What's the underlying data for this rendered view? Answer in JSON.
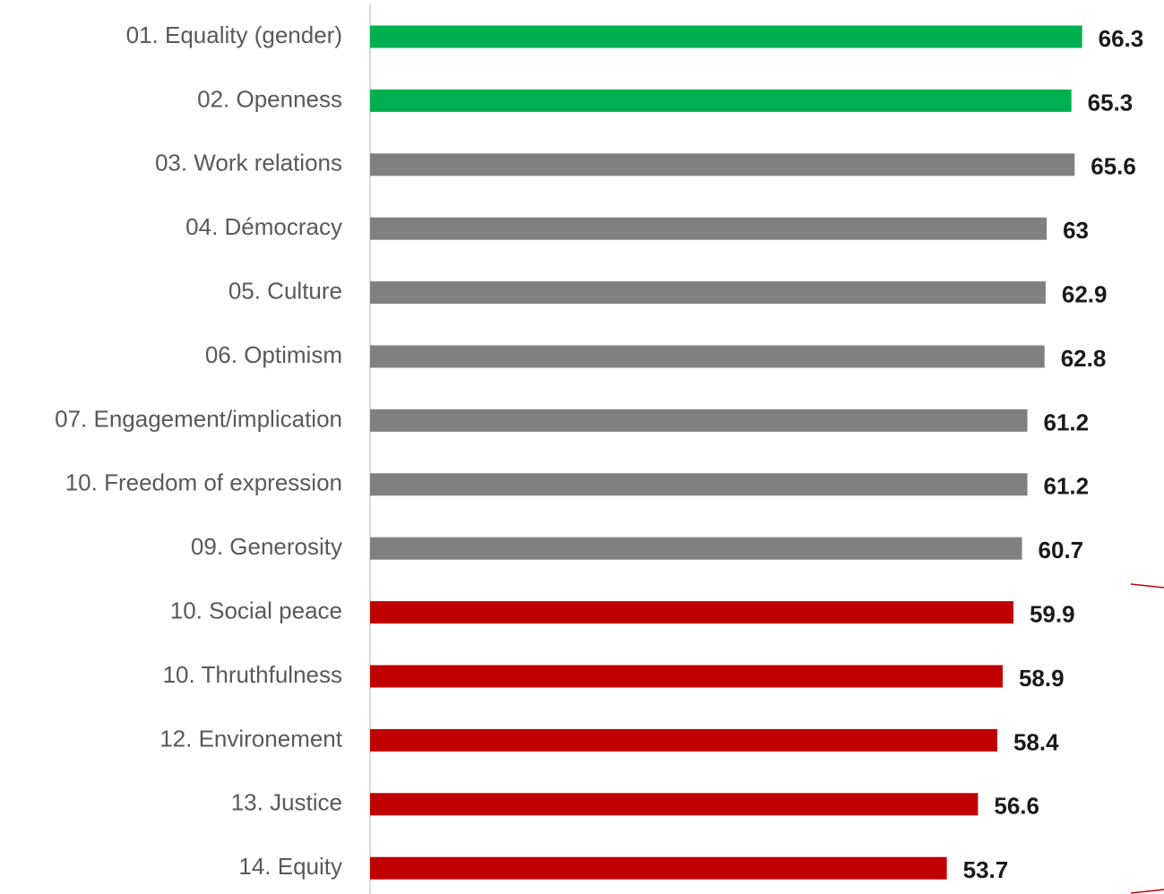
{
  "chart_data": {
    "type": "barh",
    "categories": [
      "01. Equality (gender)",
      "02. Openness",
      "03. Work relations",
      "04. Démocracy",
      "05. Culture",
      "06. Optimism",
      "07. Engagement/implication",
      "10. Freedom of expression",
      "09. Generosity",
      "10. Social peace",
      "10. Thruthfulness",
      "12. Environement",
      "13. Justice",
      "14. Equity"
    ],
    "values": [
      66.3,
      65.3,
      65.6,
      63,
      62.9,
      62.8,
      61.2,
      61.2,
      60.7,
      59.9,
      58.9,
      58.4,
      56.6,
      53.7
    ],
    "colors": [
      "#00b050",
      "#00b050",
      "#808080",
      "#808080",
      "#808080",
      "#808080",
      "#808080",
      "#808080",
      "#808080",
      "#c00000",
      "#c00000",
      "#c00000",
      "#c00000",
      "#c00000"
    ],
    "xlim": [
      0,
      70
    ]
  }
}
